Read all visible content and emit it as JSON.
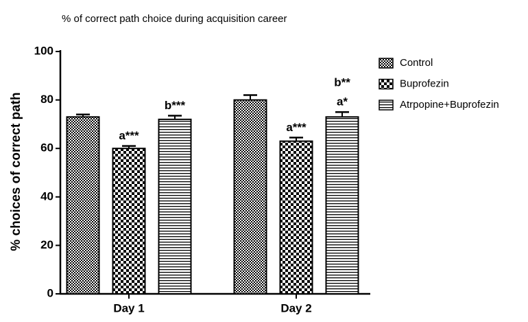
{
  "chart_data": {
    "type": "bar",
    "title": "% of correct path choice during acquisition career",
    "y_label": "% choices of correct path",
    "categories": [
      "Day 1",
      "Day 2"
    ],
    "series": [
      {
        "name": "Control",
        "color": "#000000",
        "pattern": "fine-checker",
        "values": [
          73,
          80
        ],
        "errors": [
          1,
          2
        ],
        "annotations": [
          [],
          []
        ]
      },
      {
        "name": "Buprofezin",
        "color": "#000000",
        "pattern": "checker",
        "values": [
          60,
          63
        ],
        "errors": [
          1,
          1.5
        ],
        "annotations": [
          [
            "a***"
          ],
          [
            "a***"
          ]
        ]
      },
      {
        "name": "Atrpopine+Buprofezin",
        "color": "#000000",
        "pattern": "horizontal",
        "values": [
          72,
          73
        ],
        "errors": [
          1.5,
          2
        ],
        "annotations": [
          [
            "b***"
          ],
          [
            "b**",
            "a*"
          ]
        ]
      }
    ],
    "ylim": [
      0,
      100
    ],
    "yticks": [
      0,
      20,
      40,
      60,
      80,
      100
    ],
    "grid": false,
    "legend": "right"
  }
}
